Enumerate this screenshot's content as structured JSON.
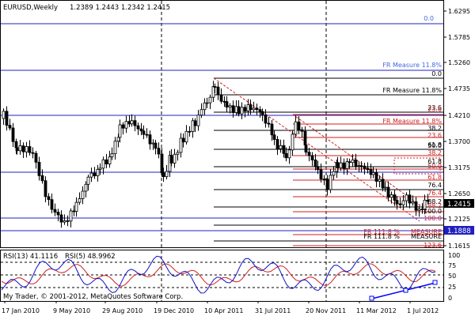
{
  "header": {
    "symbol": "EURUSD,Weekly",
    "ohlc": "1.2389 1.2443 1.2342 1.2415"
  },
  "rsi_header": {
    "label1": "RSI(13) 41.1116",
    "label2": "RSI(5) 48.9962"
  },
  "copyright": "My Trader, © 2001-2012, MetaQuotes Software Corp.",
  "chart_data": {
    "type": "candlestick",
    "price_axis": [
      "1.6295",
      "1.5785",
      "1.5260",
      "1.4735",
      "1.4210",
      "1.3700",
      "1.3175",
      "1.2650",
      "1.2125",
      "1.1615"
    ],
    "current_price": "1.2415",
    "horizontal_line_price": "1.1888",
    "rsi_axis": [
      "100",
      "75",
      "50",
      "25",
      "0"
    ],
    "x_axis": [
      "17 Jan 2010",
      "9 May 2010",
      "29 Aug 2010",
      "19 Dec 2010",
      "10 Apr 2011",
      "31 Jul 2011",
      "20 Nov 2011",
      "11 Mar 2012",
      "1 Jul 2012"
    ],
    "fib_labels": [
      {
        "text": "0.0",
        "color": "#4169e1"
      },
      {
        "text": "FR Measure 11.8%",
        "color": "#4169e1"
      },
      {
        "text": "0.0",
        "color": "#000000"
      },
      {
        "text": "FR Measure 11.8%",
        "color": "#000000"
      },
      {
        "text": "23.6",
        "color": "#000000"
      },
      {
        "text": "23.6",
        "color": "#d02020"
      },
      {
        "text": "FR Measure 11.8%",
        "color": "#d02020"
      },
      {
        "text": "38.2",
        "color": "#000000"
      },
      {
        "text": "23.6",
        "color": "#d02020"
      },
      {
        "text": "61.8",
        "color": "#000000"
      },
      {
        "text": "50.0",
        "color": "#000000"
      },
      {
        "text": "38.2",
        "color": "#d02020"
      },
      {
        "text": "61.8",
        "color": "#000000"
      },
      {
        "text": "50.0",
        "color": "#d02020"
      },
      {
        "text": "61.8",
        "color": "#d02020"
      },
      {
        "text": "76.4",
        "color": "#000000"
      },
      {
        "text": "76.4",
        "color": "#d02020"
      },
      {
        "text": "88.2",
        "color": "#000000"
      },
      {
        "text": "88.2",
        "color": "#d02020"
      },
      {
        "text": "100.0",
        "color": "#000000"
      },
      {
        "text": "100.0",
        "color": "#d02020"
      },
      {
        "text": "FR 111.8 %",
        "color": "#d02020"
      },
      {
        "text": "MEASURE",
        "color": "#d02020"
      },
      {
        "text": "FR 111.8 %",
        "color": "#000000"
      },
      {
        "text": "MEASURE",
        "color": "#000000"
      },
      {
        "text": "123.6",
        "color": "#d02020"
      }
    ]
  },
  "colors": {
    "blue_line": "#2020c0",
    "fib_black": "#000000",
    "fib_red": "#d02020",
    "rsi13": "#d02020",
    "rsi5": "#1010c8",
    "trend_blue": "#0000ff"
  }
}
